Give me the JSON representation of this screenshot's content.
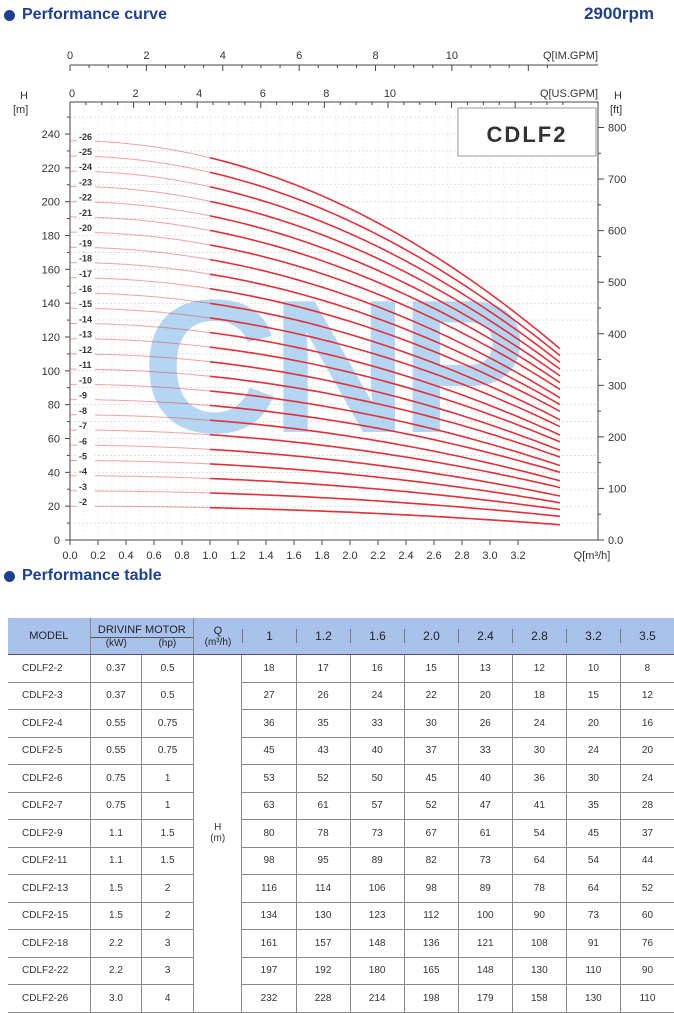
{
  "header": {
    "curve_title": "Performance curve",
    "rpm": "2900rpm",
    "table_title": "Performance table"
  },
  "colors": {
    "accent": "#1f3f8f",
    "curve": "#e0303a",
    "table_header": "#a9c2ec",
    "watermark": "#9cc8ee"
  },
  "chart_data": {
    "type": "line",
    "model_label": "CDLF2",
    "watermark": "CNP",
    "x_label": "Q[m³/h]",
    "x_ticks": [
      "0.0",
      "0.2",
      "0.4",
      "0.6",
      "0.8",
      "1.0",
      "1.2",
      "1.4",
      "1.6",
      "1.8",
      "2.0",
      "2.2",
      "2.4",
      "2.6",
      "2.8",
      "3.0",
      "3.2"
    ],
    "x_range": [
      0,
      3.6
    ],
    "top_axis_im": {
      "label": "Q[IM.GPM]",
      "ticks": [
        "0",
        "2",
        "4",
        "6",
        "8",
        "10"
      ]
    },
    "top_axis_us": {
      "label": "Q[US.GPM]",
      "ticks": [
        "0",
        "2",
        "4",
        "6",
        "8",
        "10"
      ]
    },
    "y_left": {
      "label": "H",
      "unit": "[m]",
      "ticks": [
        "0",
        "20",
        "40",
        "60",
        "80",
        "100",
        "120",
        "140",
        "160",
        "180",
        "200",
        "220",
        "240"
      ],
      "range": [
        0,
        260
      ]
    },
    "y_right": {
      "label": "H",
      "unit": "[ft]",
      "ticks": [
        "0.0",
        "100",
        "200",
        "300",
        "400",
        "500",
        "600",
        "700",
        "800"
      ]
    },
    "stage_labels": [
      "-2",
      "-3",
      "-4",
      "-5",
      "-6",
      "-7",
      "-8",
      "-9",
      "-10",
      "-11",
      "-12",
      "-13",
      "-14",
      "-15",
      "-16",
      "-17",
      "-18",
      "-19",
      "-20",
      "-21",
      "-22",
      "-23",
      "-24",
      "-25",
      "-26"
    ],
    "shutoff_heads": [
      20,
      29,
      38,
      47,
      56,
      65,
      74,
      83,
      92,
      101,
      110,
      119,
      128,
      137,
      146,
      155,
      164,
      173,
      182,
      191,
      200,
      209,
      218,
      227,
      236
    ],
    "end_heads": [
      9,
      14,
      18,
      22,
      26,
      31,
      35,
      40,
      44,
      49,
      53,
      58,
      62,
      67,
      71,
      76,
      80,
      84,
      89,
      93,
      97,
      101,
      105,
      109,
      113
    ],
    "operating_range": [
      1.0,
      3.5
    ]
  },
  "table": {
    "col_model": "MODEL",
    "col_motor": "DRIVINF MOTOR",
    "col_kw": "(kW)",
    "col_hp": "(hp)",
    "col_q": "Q",
    "col_q_unit": "(m³/h)",
    "h_label": "H",
    "h_unit": "(m)",
    "q_values": [
      "1",
      "1.2",
      "1.6",
      "2.0",
      "2.4",
      "2.8",
      "3.2",
      "3.5"
    ],
    "rows": [
      {
        "model": "CDLF2-2",
        "kw": "0.37",
        "hp": "0.5",
        "h": [
          "18",
          "17",
          "16",
          "15",
          "13",
          "12",
          "10",
          "8"
        ]
      },
      {
        "model": "CDLF2-3",
        "kw": "0.37",
        "hp": "0.5",
        "h": [
          "27",
          "26",
          "24",
          "22",
          "20",
          "18",
          "15",
          "12"
        ]
      },
      {
        "model": "CDLF2-4",
        "kw": "0.55",
        "hp": "0.75",
        "h": [
          "36",
          "35",
          "33",
          "30",
          "26",
          "24",
          "20",
          "16"
        ]
      },
      {
        "model": "CDLF2-5",
        "kw": "0.55",
        "hp": "0.75",
        "h": [
          "45",
          "43",
          "40",
          "37",
          "33",
          "30",
          "24",
          "20"
        ]
      },
      {
        "model": "CDLF2-6",
        "kw": "0.75",
        "hp": "1",
        "h": [
          "53",
          "52",
          "50",
          "45",
          "40",
          "36",
          "30",
          "24"
        ]
      },
      {
        "model": "CDLF2-7",
        "kw": "0.75",
        "hp": "1",
        "h": [
          "63",
          "61",
          "57",
          "52",
          "47",
          "41",
          "35",
          "28"
        ]
      },
      {
        "model": "CDLF2-9",
        "kw": "1.1",
        "hp": "1.5",
        "h": [
          "80",
          "78",
          "73",
          "67",
          "61",
          "54",
          "45",
          "37"
        ]
      },
      {
        "model": "CDLF2-11",
        "kw": "1.1",
        "hp": "1.5",
        "h": [
          "98",
          "95",
          "89",
          "82",
          "73",
          "64",
          "54",
          "44"
        ]
      },
      {
        "model": "CDLF2-13",
        "kw": "1.5",
        "hp": "2",
        "h": [
          "116",
          "114",
          "106",
          "98",
          "89",
          "78",
          "64",
          "52"
        ]
      },
      {
        "model": "CDLF2-15",
        "kw": "1.5",
        "hp": "2",
        "h": [
          "134",
          "130",
          "123",
          "112",
          "100",
          "90",
          "73",
          "60"
        ]
      },
      {
        "model": "CDLF2-18",
        "kw": "2.2",
        "hp": "3",
        "h": [
          "161",
          "157",
          "148",
          "136",
          "121",
          "108",
          "91",
          "76"
        ]
      },
      {
        "model": "CDLF2-22",
        "kw": "2.2",
        "hp": "3",
        "h": [
          "197",
          "192",
          "180",
          "165",
          "148",
          "130",
          "110",
          "90"
        ]
      },
      {
        "model": "CDLF2-26",
        "kw": "3.0",
        "hp": "4",
        "h": [
          "232",
          "228",
          "214",
          "198",
          "179",
          "158",
          "130",
          "110"
        ]
      }
    ]
  }
}
